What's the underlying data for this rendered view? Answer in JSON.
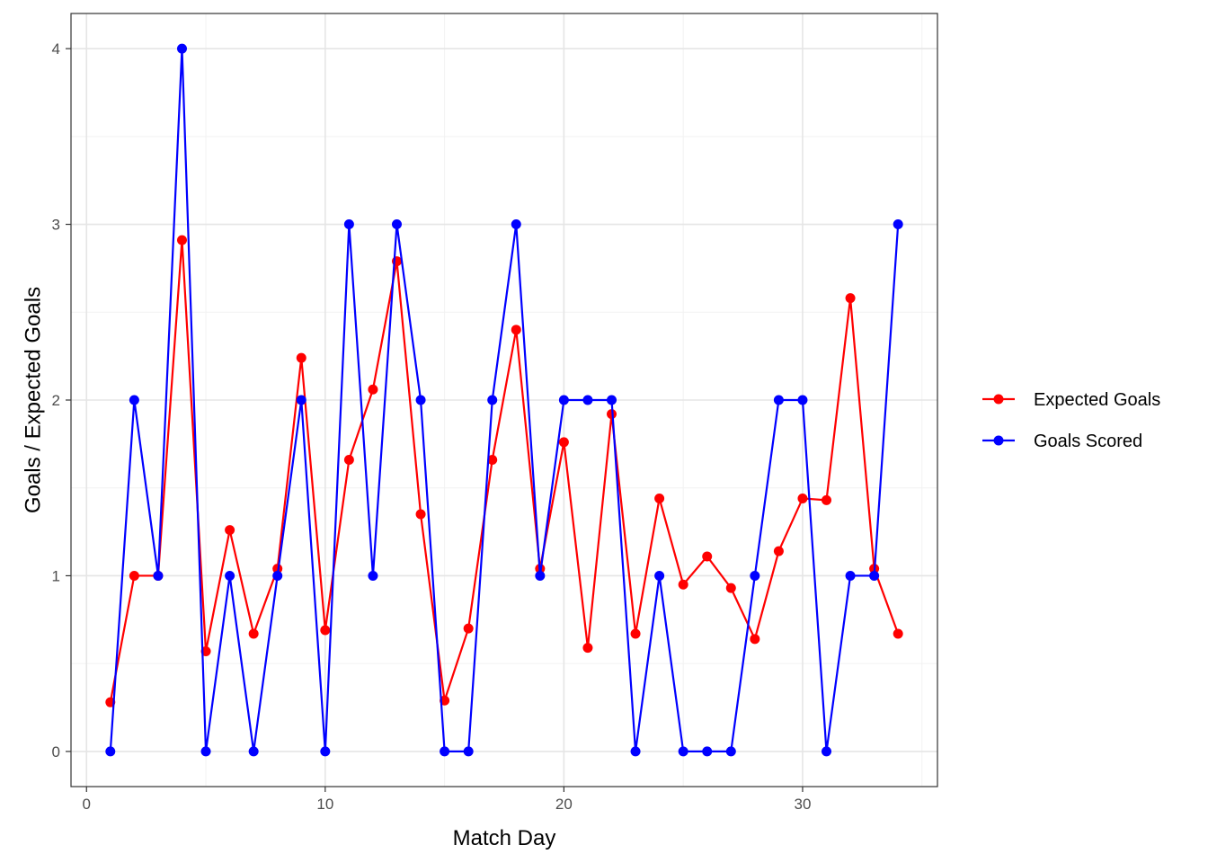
{
  "chart_data": {
    "type": "line",
    "title": "",
    "xlabel": "Match Day",
    "ylabel": "Goals / Expected Goals",
    "xlim": [
      -0.65,
      35.65
    ],
    "ylim": [
      -0.2,
      4.2
    ],
    "x_ticks": [
      0,
      10,
      20,
      30
    ],
    "y_ticks": [
      0,
      1,
      2,
      3,
      4
    ],
    "grid": true,
    "legend_position": "right",
    "x": [
      1,
      2,
      3,
      4,
      5,
      6,
      7,
      8,
      9,
      10,
      11,
      12,
      13,
      14,
      15,
      16,
      17,
      18,
      19,
      20,
      21,
      22,
      23,
      24,
      25,
      26,
      27,
      28,
      29,
      30,
      31,
      32,
      33,
      34
    ],
    "series": [
      {
        "name": "Expected Goals",
        "color": "#ff0000",
        "values": [
          0.28,
          1.0,
          1.0,
          2.91,
          0.57,
          1.26,
          0.67,
          1.04,
          2.24,
          0.69,
          1.66,
          2.06,
          2.79,
          1.35,
          0.29,
          0.7,
          1.66,
          2.4,
          1.04,
          1.76,
          0.59,
          1.92,
          0.67,
          1.44,
          0.95,
          1.11,
          0.93,
          0.64,
          1.14,
          1.44,
          1.43,
          2.58,
          1.04,
          0.67
        ]
      },
      {
        "name": "Goals Scored",
        "color": "#0000ff",
        "values": [
          0,
          2,
          1,
          4,
          0,
          1,
          0,
          1,
          2,
          0,
          3,
          1,
          3,
          2,
          0,
          0,
          2,
          3,
          1,
          2,
          2,
          2,
          0,
          1,
          0,
          0,
          0,
          1,
          2,
          2,
          0,
          1,
          1,
          3
        ]
      }
    ]
  }
}
